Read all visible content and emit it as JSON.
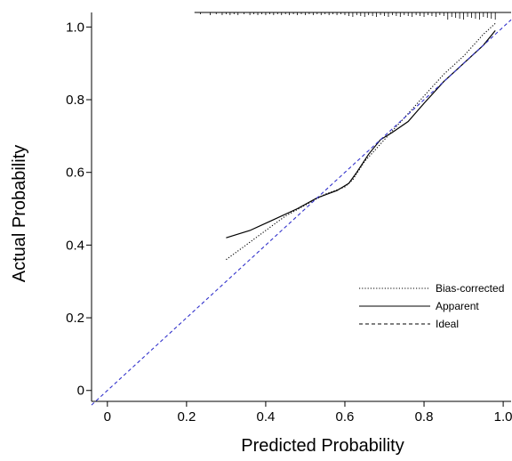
{
  "chart_data": {
    "type": "line",
    "xlabel": "Predicted Probability",
    "ylabel": "Actual Probability",
    "xlim": [
      -0.04,
      1.02
    ],
    "ylim": [
      -0.03,
      1.04
    ],
    "x_ticks": [
      0,
      0.2,
      0.4,
      0.6,
      0.8,
      1.0
    ],
    "x_tick_labels": [
      "0",
      "0.2",
      "0.4",
      "0.6",
      "0.8",
      "1.0"
    ],
    "y_ticks": [
      0,
      0.2,
      0.4,
      0.6,
      0.8,
      1.0
    ],
    "y_tick_labels": [
      "0",
      "0.2",
      "0.4",
      "0.6",
      "0.8",
      "1.0"
    ],
    "grid": false,
    "legend_position": "bottom-right",
    "series": [
      {
        "name": "Bias-corrected",
        "line_style": "dotted",
        "color": "#000000",
        "x": [
          0.3,
          0.35,
          0.4,
          0.45,
          0.5,
          0.55,
          0.6,
          0.62,
          0.65,
          0.7,
          0.75,
          0.8,
          0.85,
          0.9,
          0.95,
          0.98
        ],
        "y": [
          0.36,
          0.4,
          0.44,
          0.48,
          0.51,
          0.54,
          0.56,
          0.58,
          0.63,
          0.69,
          0.75,
          0.81,
          0.87,
          0.92,
          0.98,
          1.01
        ]
      },
      {
        "name": "Apparent",
        "line_style": "solid",
        "color": "#000000",
        "x": [
          0.3,
          0.36,
          0.42,
          0.48,
          0.53,
          0.58,
          0.61,
          0.63,
          0.66,
          0.69,
          0.72,
          0.76,
          0.8,
          0.85,
          0.9,
          0.95,
          0.98
        ],
        "y": [
          0.42,
          0.44,
          0.47,
          0.5,
          0.53,
          0.55,
          0.57,
          0.6,
          0.65,
          0.69,
          0.71,
          0.74,
          0.79,
          0.85,
          0.9,
          0.95,
          0.99
        ]
      },
      {
        "name": "Ideal",
        "line_style": "dashed",
        "color": "#3333cc",
        "x": [
          -0.04,
          1.02
        ],
        "y": [
          -0.04,
          1.02
        ]
      }
    ],
    "rug": [
      0.235,
      0.26,
      0.275,
      0.29,
      0.3,
      0.31,
      0.32,
      0.33,
      0.345,
      0.36,
      0.37,
      0.38,
      0.39,
      0.4,
      0.41,
      0.42,
      0.43,
      0.44,
      0.45,
      0.46,
      0.47,
      0.48,
      0.49,
      0.5,
      0.51,
      0.52,
      0.53,
      0.54,
      0.55,
      0.56,
      0.57,
      0.58,
      0.59,
      0.6,
      0.61,
      0.62,
      0.63,
      0.64,
      0.65,
      0.66,
      0.67,
      0.68,
      0.69,
      0.7,
      0.71,
      0.72,
      0.73,
      0.74,
      0.75,
      0.76,
      0.77,
      0.78,
      0.79,
      0.8,
      0.81,
      0.82,
      0.83,
      0.84,
      0.85,
      0.86,
      0.87,
      0.88,
      0.89,
      0.9,
      0.91,
      0.92,
      0.93,
      0.94,
      0.95,
      0.96,
      0.97,
      0.98
    ]
  }
}
